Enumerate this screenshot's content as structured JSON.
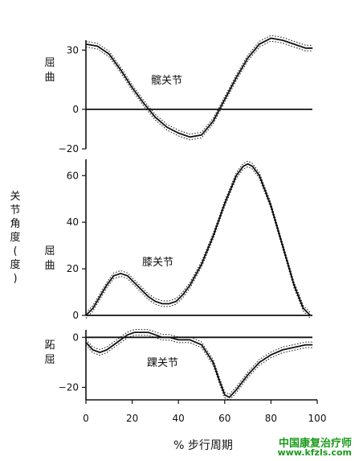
{
  "side_label": "关节角度(度)",
  "xlabel": "% 步行周期",
  "watermark": {
    "line1": "中国康复治疗师",
    "line2": "www.kfzls.com"
  },
  "colors": {
    "ink": "#111111",
    "watermark": "#1a9a1a"
  },
  "chart_data": [
    {
      "type": "line",
      "title": "髋关节",
      "ylabel": "屈曲",
      "ylim": [
        -20,
        35
      ],
      "yticks": [
        -20,
        0,
        30
      ],
      "xlim": [
        0,
        100
      ],
      "zero_line": true,
      "series": [
        {
          "x": [
            0,
            5,
            10,
            15,
            20,
            25,
            30,
            35,
            40,
            45,
            50,
            55,
            60,
            65,
            70,
            75,
            80,
            85,
            90,
            95,
            98
          ],
          "values": [
            33,
            32,
            28,
            20,
            11,
            3,
            -4,
            -9,
            -12,
            -14,
            -13,
            -6,
            5,
            16,
            26,
            33,
            36,
            35,
            33,
            31,
            31
          ]
        }
      ]
    },
    {
      "type": "line",
      "title": "膝关节",
      "ylabel": "屈曲",
      "ylim": [
        0,
        67
      ],
      "yticks": [
        0,
        20,
        40,
        60
      ],
      "xlim": [
        0,
        100
      ],
      "zero_line": true,
      "series": [
        {
          "x": [
            0,
            3,
            6,
            9,
            12,
            15,
            18,
            21,
            24,
            27,
            30,
            33,
            36,
            39,
            42,
            45,
            50,
            55,
            60,
            65,
            68,
            70,
            72,
            75,
            80,
            85,
            90,
            94,
            97
          ],
          "values": [
            0,
            3,
            8,
            13,
            17,
            18,
            17,
            14,
            11,
            8,
            6,
            5,
            5,
            6,
            9,
            13,
            22,
            34,
            48,
            60,
            64,
            65,
            64,
            60,
            47,
            30,
            13,
            3,
            0
          ]
        }
      ]
    },
    {
      "type": "line",
      "title": "踝关节",
      "ylabel": "跖屈",
      "ylim": [
        -25,
        3
      ],
      "yticks": [
        -20,
        0
      ],
      "xlim": [
        0,
        100
      ],
      "xticks": [
        0,
        20,
        40,
        60,
        80,
        100
      ],
      "xlabel": "% 步行周期",
      "zero_line": true,
      "series": [
        {
          "x": [
            0,
            3,
            6,
            9,
            12,
            15,
            18,
            21,
            24,
            27,
            30,
            33,
            36,
            40,
            45,
            50,
            55,
            58,
            60,
            62,
            65,
            70,
            75,
            80,
            85,
            90,
            95,
            98
          ],
          "values": [
            -2,
            -5,
            -6,
            -5,
            -3,
            -1,
            1,
            2,
            2,
            2,
            1,
            0,
            0,
            -1,
            -1,
            -3,
            -10,
            -18,
            -23,
            -24,
            -21,
            -15,
            -10,
            -7,
            -5,
            -4,
            -3,
            -3
          ]
        }
      ]
    }
  ]
}
